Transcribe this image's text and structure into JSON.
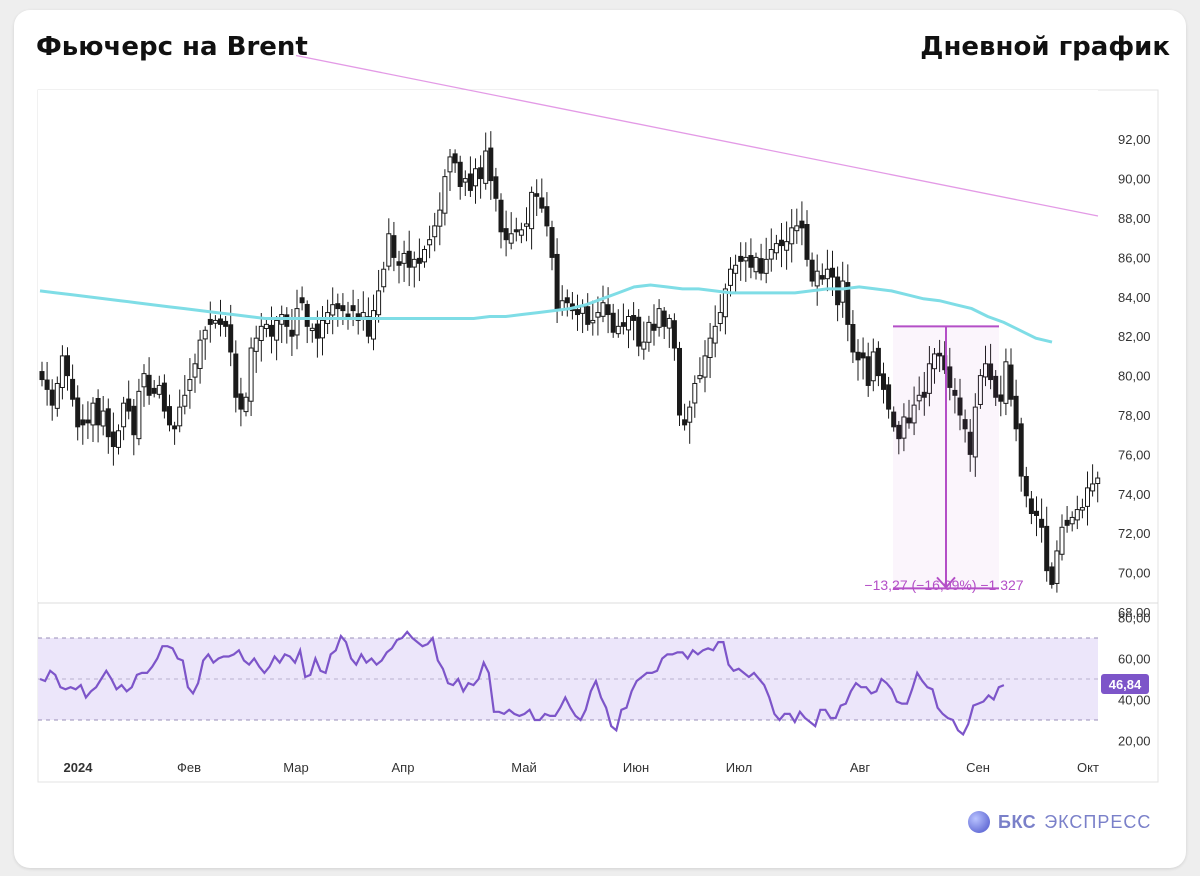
{
  "header": {
    "title": "Фьючерс на Brent",
    "subtitle": "Дневной график"
  },
  "logo": {
    "brand": "БКС",
    "rest": "ЭКСПРЕСС"
  },
  "colors": {
    "candle": "#1a1a1a",
    "moving_average": "#7fdde6",
    "trendline": "#e39ae6",
    "measure": "#b44fc7",
    "rsi_line": "#7d55c9",
    "rsi_band": "#ece6fa"
  },
  "chart_data": [
    {
      "type": "candlestick",
      "instrument": "Brent futures",
      "ylim": [
        67,
        93.5
      ],
      "yticks": [
        "92,00",
        "90,00",
        "88,00",
        "86,00",
        "84,00",
        "82,00",
        "80,00",
        "78,00",
        "76,00",
        "74,00",
        "72,00",
        "70,00",
        "68,00"
      ],
      "x_tick_labels": [
        "2024",
        "Фев",
        "Мар",
        "Апр",
        "Май",
        "Июн",
        "Июл",
        "Авг",
        "Сен",
        "Окт"
      ],
      "grid": false,
      "closes": [
        79.8,
        79.3,
        78.5,
        79.6,
        81.0,
        80.0,
        78.8,
        77.4,
        77.5,
        77.6,
        78.6,
        77.5,
        78.2,
        76.9,
        76.4,
        77.2,
        78.6,
        78.2,
        77.0,
        79.2,
        80.1,
        79.0,
        79.1,
        79.5,
        78.2,
        77.5,
        77.3,
        78.4,
        79.0,
        79.8,
        80.6,
        81.8,
        82.3,
        82.6,
        82.8,
        82.6,
        82.5,
        81.2,
        78.9,
        78.3,
        78.9,
        81.4,
        81.9,
        82.5,
        82.6,
        82.0,
        82.8,
        83.1,
        82.5,
        82.0,
        83.4,
        83.7,
        82.5,
        82.4,
        81.9,
        82.8,
        83.2,
        83.6,
        83.4,
        83.3,
        83.0,
        83.3,
        82.8,
        83.2,
        82.0,
        83.3,
        84.3,
        85.4,
        87.2,
        86.0,
        85.6,
        86.2,
        85.5,
        85.9,
        85.7,
        86.4,
        86.9,
        87.6,
        88.4,
        90.1,
        91.1,
        90.8,
        89.6,
        90.0,
        89.4,
        90.5,
        90.0,
        91.4,
        89.9,
        89.0,
        87.3,
        86.9,
        87.2,
        87.3,
        87.4,
        87.7,
        89.3,
        89.1,
        88.5,
        87.6,
        86.0,
        83.4,
        83.8,
        83.7,
        83.3,
        83.1,
        83.5,
        82.6,
        82.8,
        83.2,
        83.7,
        83.1,
        82.2,
        82.5,
        82.5,
        83.0,
        82.8,
        81.5,
        81.7,
        82.7,
        82.3,
        83.4,
        82.5,
        82.9,
        81.4,
        78.0,
        77.5,
        78.4,
        79.6,
        80.0,
        81.0,
        81.9,
        82.5,
        83.2,
        84.4,
        85.4,
        85.6,
        85.8,
        86.0,
        85.5,
        86.0,
        85.2,
        85.9,
        86.4,
        86.7,
        86.6,
        86.8,
        87.5,
        87.6,
        87.5,
        85.9,
        84.8,
        85.3,
        84.9,
        85.4,
        85.0,
        83.6,
        84.8,
        82.6,
        81.2,
        80.8,
        80.9,
        79.5,
        81.2,
        80.0,
        79.3,
        78.3,
        77.4,
        76.8,
        77.9,
        77.6,
        78.5,
        79.0,
        78.9,
        80.6,
        81.1,
        81.0,
        80.3,
        79.4,
        79.0,
        78.0,
        77.3,
        76.0,
        78.4,
        80.0,
        80.6,
        79.8,
        78.9,
        78.7,
        80.7,
        78.8,
        77.3,
        74.9,
        73.9,
        73.0,
        72.9,
        72.3,
        70.1,
        69.4,
        71.1,
        72.3,
        72.4,
        72.8,
        73.2,
        73.3,
        74.3,
        74.5,
        74.8
      ]
    },
    {
      "type": "line",
      "series": [
        {
          "values": [
            84.3,
            84.2,
            84.1,
            84.0,
            83.9,
            83.8,
            83.7,
            83.6,
            83.5,
            83.4,
            83.3,
            83.2,
            83.1,
            83.0,
            82.9,
            82.9,
            82.9,
            82.9,
            82.9,
            82.9,
            82.9,
            82.9,
            82.9,
            82.9,
            82.9,
            82.9,
            82.9,
            82.9,
            83.0,
            83.0,
            83.1,
            83.2,
            83.3,
            83.4,
            83.6,
            83.9,
            84.2,
            84.5,
            84.6,
            84.5,
            84.4,
            84.4,
            84.3,
            84.2,
            84.2,
            84.2,
            84.2,
            84.2,
            84.3,
            84.4,
            84.4,
            84.5,
            84.4,
            84.3,
            84.1,
            83.9,
            83.8,
            83.6,
            83.4,
            83.0,
            82.7,
            82.3,
            81.9,
            81.7
          ]
        }
      ]
    },
    {
      "type": "line",
      "series": [
        {
          "values": [
            92.4,
            88.1
          ]
        }
      ]
    },
    {
      "type": "range_annotation",
      "from": 82.5,
      "to": 69.2,
      "label": "−13,27 (−16,09%) −1 327"
    },
    {
      "type": "line",
      "ylim": [
        12,
        82
      ],
      "yticks": [
        "80,00",
        "60,00",
        "40,00",
        "20,00"
      ],
      "band": [
        30,
        70
      ],
      "midline": 50,
      "current_value_label": "46,84",
      "series": [
        {
          "values": [
            50,
            49,
            54,
            52,
            46,
            45,
            46,
            45,
            47,
            41,
            44,
            46,
            50,
            54,
            50,
            45,
            47,
            44,
            46,
            52,
            53,
            53,
            56,
            60,
            66,
            66,
            65,
            60,
            59,
            46,
            43,
            48,
            59,
            62,
            58,
            60,
            61,
            61,
            62,
            64,
            59,
            57,
            60,
            56,
            53,
            56,
            61,
            58,
            62,
            61,
            58,
            64,
            51,
            52,
            60,
            54,
            53,
            62,
            64,
            71,
            68,
            60,
            57,
            62,
            58,
            60,
            57,
            59,
            63,
            65,
            69,
            70,
            73,
            70,
            68,
            66,
            67,
            70,
            59,
            55,
            48,
            47,
            50,
            44,
            48,
            47,
            50,
            58,
            53,
            34,
            34,
            33,
            35,
            33,
            32,
            33,
            35,
            30,
            30,
            33,
            32,
            32,
            36,
            41,
            36,
            32,
            30,
            35,
            44,
            49,
            41,
            36,
            27,
            25,
            35,
            36,
            44,
            49,
            51,
            53,
            53,
            54,
            60,
            62,
            62,
            63,
            63,
            60,
            64,
            62,
            64,
            65,
            64,
            68,
            68,
            57,
            54,
            55,
            53,
            51,
            53,
            50,
            47,
            41,
            33,
            30,
            33,
            33,
            29,
            34,
            31,
            29,
            27,
            35,
            35,
            31,
            31,
            37,
            38,
            44,
            48,
            46,
            46,
            43,
            44,
            50,
            48,
            45,
            39,
            38,
            38,
            45,
            53,
            49,
            46,
            45,
            36,
            33,
            31,
            30,
            25,
            23,
            28,
            37,
            38,
            39,
            42,
            40,
            46,
            47
          ]
        }
      ]
    }
  ]
}
